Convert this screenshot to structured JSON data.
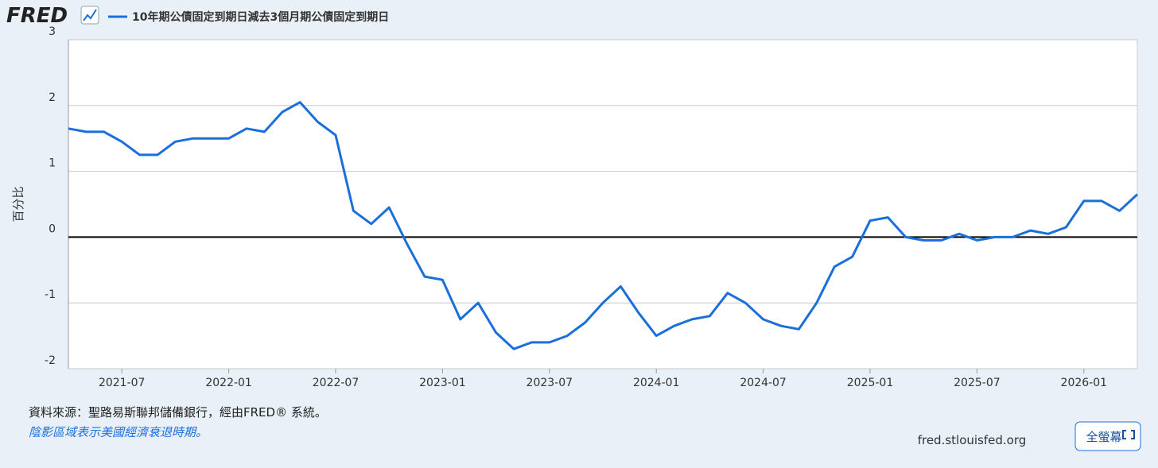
{
  "logo": "FRED",
  "source": "資料來源：聖路易斯聯邦儲備銀行，經由FRED® 系統。",
  "note": "陰影區域表示美國經濟衰退時期。",
  "site": "fred.stlouisfed.org",
  "fullscreen_button": "全螢幕",
  "chart_data": {
    "type": "line",
    "y_label": "百分比",
    "x": [
      "2021-04",
      "2021-05",
      "2021-06",
      "2021-07",
      "2021-08",
      "2021-09",
      "2021-10",
      "2021-11",
      "2021-12",
      "2022-01",
      "2022-02",
      "2022-03",
      "2022-04",
      "2022-05",
      "2022-06",
      "2022-07",
      "2022-08",
      "2022-09",
      "2022-10",
      "2022-11",
      "2022-12",
      "2023-01",
      "2023-02",
      "2023-03",
      "2023-04",
      "2023-05",
      "2023-06",
      "2023-07",
      "2023-08",
      "2023-09",
      "2023-10",
      "2023-11",
      "2023-12",
      "2024-01",
      "2024-02",
      "2024-03",
      "2024-04",
      "2024-05",
      "2024-06",
      "2024-07",
      "2024-08",
      "2024-09",
      "2024-10",
      "2024-11",
      "2024-12",
      "2025-01",
      "2025-02",
      "2025-03",
      "2025-04",
      "2025-05",
      "2025-06",
      "2025-07",
      "2025-08",
      "2025-09",
      "2025-10",
      "2025-11",
      "2025-12",
      "2026-01",
      "2026-02",
      "2026-03",
      "2026-04"
    ],
    "series": [
      {
        "name": "10年期公債固定到期日減去3個月期公債固定到期日",
        "color": "#1a6fdb",
        "values": [
          1.65,
          1.6,
          1.6,
          1.45,
          1.25,
          1.25,
          1.45,
          1.5,
          1.5,
          1.5,
          1.65,
          1.6,
          1.9,
          2.05,
          1.75,
          1.55,
          0.4,
          0.2,
          0.45,
          -0.1,
          -0.6,
          -0.65,
          -1.25,
          -1.0,
          -1.45,
          -1.7,
          -1.6,
          -1.6,
          -1.5,
          -1.3,
          -1.0,
          -0.75,
          -1.15,
          -1.5,
          -1.35,
          -1.25,
          -1.2,
          -0.85,
          -1.0,
          -1.25,
          -1.35,
          -1.4,
          -1.0,
          -0.45,
          -0.3,
          0.25,
          0.3,
          0.0,
          -0.05,
          -0.05,
          0.05,
          -0.05,
          0.0,
          0.0,
          0.1,
          0.05,
          0.15,
          0.55,
          0.55,
          0.4,
          0.65
        ]
      }
    ],
    "xlim": [
      "2021-04",
      "2026-04"
    ],
    "xticks": [
      "2021-07",
      "2022-01",
      "2022-07",
      "2023-01",
      "2023-07",
      "2024-01",
      "2024-07",
      "2025-01",
      "2025-07",
      "2026-01"
    ],
    "ylim": [
      -2,
      3
    ],
    "yticks": [
      -2,
      -1,
      0,
      1,
      2,
      3
    ],
    "grid": true
  }
}
